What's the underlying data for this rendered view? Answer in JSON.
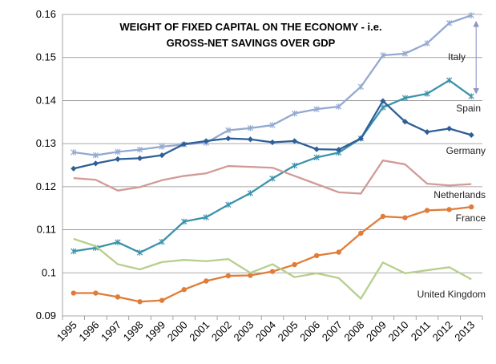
{
  "chart_data": {
    "type": "line",
    "title_lines": [
      "WEIGHT OF FIXED CAPITAL ON THE ECONOMY - i.e.",
      "GROSS-NET SAVINGS OVER GDP"
    ],
    "xlabel": "",
    "ylabel": "",
    "ylim": [
      0.09,
      0.16
    ],
    "yticks": [
      "0.09",
      "0.1",
      "0.11",
      "0.12",
      "0.13",
      "0.14",
      "0.15",
      "0.16"
    ],
    "grid": true,
    "categories": [
      "1995",
      "1996",
      "1997",
      "1998",
      "1999",
      "2000",
      "2001",
      "2002",
      "2003",
      "2004",
      "2005",
      "2006",
      "2007",
      "2008",
      "2009",
      "2010",
      "2011",
      "2012",
      "2013"
    ],
    "series": [
      {
        "name": "Italy",
        "color": "#93A9D1",
        "marker": "star",
        "values": [
          0.128,
          0.1273,
          0.1281,
          0.1286,
          0.1293,
          0.1298,
          0.1302,
          0.1331,
          0.1336,
          0.1343,
          0.137,
          0.138,
          0.1386,
          0.1432,
          0.1505,
          0.1509,
          0.1533,
          0.158,
          0.1598
        ]
      },
      {
        "name": "Spain",
        "color": "#3B93AC",
        "marker": "star",
        "values": [
          0.105,
          0.1058,
          0.1071,
          0.1047,
          0.1072,
          0.1119,
          0.1129,
          0.1158,
          0.1185,
          0.1219,
          0.1249,
          0.1268,
          0.1279,
          0.1312,
          0.1384,
          0.1406,
          0.1416,
          0.1447,
          0.141
        ]
      },
      {
        "name": "Germany",
        "color": "#2E5F98",
        "marker": "diamond",
        "values": [
          0.1242,
          0.1254,
          0.1264,
          0.1266,
          0.1273,
          0.1299,
          0.1306,
          0.1312,
          0.131,
          0.1303,
          0.1306,
          0.1287,
          0.1286,
          0.1312,
          0.1399,
          0.1351,
          0.1327,
          0.1335,
          0.132
        ]
      },
      {
        "name": "Netherlands",
        "color": "#D19A96",
        "marker": "none",
        "values": [
          0.122,
          0.1216,
          0.1191,
          0.1199,
          0.1215,
          0.1225,
          0.1231,
          0.1248,
          0.1246,
          0.1244,
          0.1225,
          0.1206,
          0.1187,
          0.1184,
          0.1261,
          0.1252,
          0.1207,
          0.1203,
          0.1206
        ]
      },
      {
        "name": "France",
        "color": "#E07C37",
        "marker": "circle",
        "values": [
          0.0953,
          0.0953,
          0.0944,
          0.0933,
          0.0936,
          0.0961,
          0.0981,
          0.0993,
          0.0994,
          0.1003,
          0.1019,
          0.104,
          0.1048,
          0.1092,
          0.1131,
          0.1128,
          0.1145,
          0.1147,
          0.1153
        ]
      },
      {
        "name": "United Kingdom",
        "color": "#B6CF8D",
        "marker": "none",
        "values": [
          0.1079,
          0.1062,
          0.102,
          0.1008,
          0.1025,
          0.103,
          0.1027,
          0.1032,
          0.1,
          0.102,
          0.099,
          0.0999,
          0.0988,
          0.094,
          0.1024,
          0.0999,
          0.1006,
          0.1013,
          0.0985
        ]
      }
    ],
    "series_labels": [
      {
        "text": "Italy",
        "color": "#C0504D"
      },
      {
        "text": "Spain",
        "color": "#222222"
      },
      {
        "text": "Germany",
        "color": "#222222"
      },
      {
        "text": "Netherlands",
        "color": "#222222"
      },
      {
        "text": "France",
        "color": "#222222"
      },
      {
        "text": "United Kingdom",
        "color": "#222222"
      }
    ],
    "annotation": {
      "type": "double-arrow",
      "color": "#8C95C4",
      "from_value": 0.1578,
      "to_value": 0.1422,
      "x_category": "2013"
    }
  }
}
